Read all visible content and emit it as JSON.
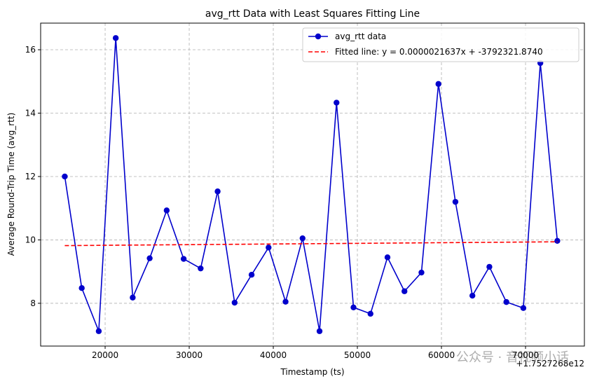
{
  "chart_data": {
    "type": "line",
    "title": "avg_rtt Data with Least Squares Fitting Line",
    "xlabel": "Timestamp (ts)",
    "ylabel": "Average Round-Trip Time (avg_rtt)",
    "x_offset_label": "+1.7527268e12",
    "watermark": "公众号 · 音视频小话",
    "xlim": [
      12330,
      77000
    ],
    "ylim": [
      6.65,
      16.84
    ],
    "xticks": [
      20000,
      30000,
      40000,
      50000,
      60000,
      70000
    ],
    "yticks": [
      8,
      10,
      12,
      14,
      16
    ],
    "grid": true,
    "legend": "upper right",
    "series": [
      {
        "name": "avg_rtt data",
        "color": "#0000cc",
        "marker": "o",
        "linestyle": "solid",
        "x": [
          15200,
          17220,
          19240,
          21260,
          23280,
          25300,
          27320,
          29340,
          31360,
          33380,
          35400,
          37420,
          39440,
          41460,
          43480,
          45500,
          47520,
          49540,
          51560,
          53580,
          55600,
          57620,
          59640,
          61660,
          63680,
          65700,
          67720,
          69740,
          71760,
          73780
        ],
        "values": [
          12.0,
          8.48,
          7.12,
          16.37,
          8.18,
          9.42,
          10.93,
          9.4,
          9.1,
          11.53,
          8.02,
          8.9,
          9.76,
          8.05,
          10.05,
          7.12,
          14.33,
          7.87,
          7.67,
          9.45,
          8.38,
          8.97,
          14.92,
          11.2,
          8.24,
          9.15,
          8.04,
          7.85,
          15.58,
          9.97
        ]
      },
      {
        "name": "Fitted line: y = 0.0000021637x + -3792321.8740",
        "color": "#ff0000",
        "marker": null,
        "linestyle": "dashed",
        "x": [
          15200,
          73780
        ],
        "values": [
          9.82,
          9.94
        ]
      }
    ]
  }
}
